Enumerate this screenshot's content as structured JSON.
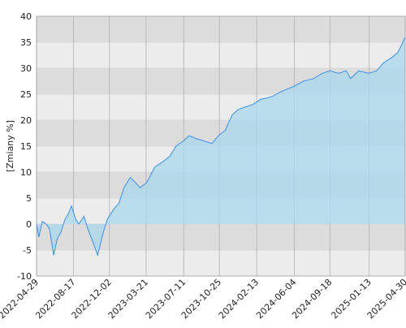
{
  "chart_data": {
    "type": "area",
    "y_label": "[Zmiany %]",
    "x": [
      "2022-04-29",
      "2022-05-06",
      "2022-05-16",
      "2022-05-28",
      "2022-06-07",
      "2022-06-19",
      "2022-06-29",
      "2022-07-11",
      "2022-07-23",
      "2022-08-02",
      "2022-08-11",
      "2022-08-23",
      "2022-09-02",
      "2022-09-17",
      "2022-09-29",
      "2022-10-11",
      "2022-10-28",
      "2022-11-12",
      "2022-11-26",
      "2022-12-16",
      "2022-12-30",
      "2023-01-14",
      "2023-02-02",
      "2023-02-17",
      "2023-03-03",
      "2023-03-23",
      "2023-04-16",
      "2023-05-10",
      "2023-05-30",
      "2023-06-18",
      "2023-07-10",
      "2023-07-27",
      "2023-08-15",
      "2023-09-09",
      "2023-10-03",
      "2023-10-22",
      "2023-11-11",
      "2023-12-02",
      "2023-12-19",
      "2024-01-08",
      "2024-02-01",
      "2024-02-25",
      "2024-03-28",
      "2024-04-26",
      "2024-06-02",
      "2024-07-01",
      "2024-08-01",
      "2024-08-25",
      "2024-09-19",
      "2024-10-13",
      "2024-11-06",
      "2024-11-18",
      "2024-12-13",
      "2025-01-11",
      "2025-02-04",
      "2025-02-24",
      "2025-03-20",
      "2025-04-08",
      "2025-04-23",
      "2025-04-30"
    ],
    "values": [
      0,
      -2.5,
      0.5,
      0,
      -1,
      -6,
      -3,
      -1.5,
      1,
      2,
      3.5,
      1,
      0,
      1.5,
      -1,
      -3,
      -6,
      -2,
      1,
      3,
      4,
      7,
      9,
      8,
      7,
      8,
      11,
      12,
      13,
      15,
      16,
      17,
      16.5,
      16,
      15.5,
      17,
      18,
      21,
      22,
      22.5,
      23,
      24,
      24.5,
      25.5,
      26.5,
      27.5,
      28,
      29,
      29.5,
      29,
      29.5,
      28,
      29.5,
      29,
      29.5,
      31,
      32,
      33,
      35,
      36
    ],
    "line_color": "#3d8fe8",
    "fill_color": "#a9d8ef",
    "xlim": [
      "2022-04-29",
      "2025-04-30"
    ],
    "xticks": [
      "2022-04-29",
      "2022-08-17",
      "2022-12-02",
      "2023-03-21",
      "2023-07-11",
      "2023-10-25",
      "2024-02-13",
      "2024-06-04",
      "2024-09-18",
      "2025-01-13",
      "2025-04-30"
    ],
    "ylim": [
      -10,
      40
    ],
    "yticks": [
      -10,
      -5,
      0,
      5,
      10,
      15,
      20,
      25,
      30,
      35,
      40
    ],
    "grid": true
  }
}
